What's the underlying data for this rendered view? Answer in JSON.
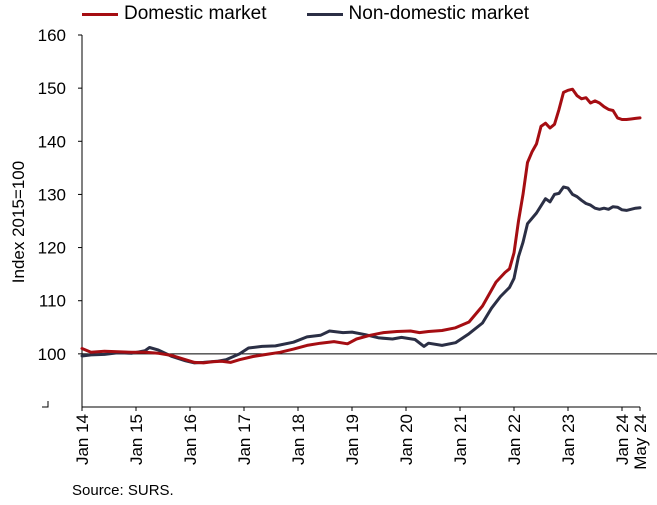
{
  "chart_data": {
    "type": "line",
    "title": "",
    "ylabel": "Index 2015=100",
    "xlabel": "",
    "ylim": [
      90,
      160
    ],
    "y_ticks": [
      100,
      110,
      120,
      130,
      140,
      150,
      160
    ],
    "x_tick_labels": [
      "Jan 14",
      "Jan 15",
      "Jan 16",
      "Jan 17",
      "Jan 18",
      "Jan 19",
      "Jan 20",
      "Jan 21",
      "Jan 22",
      "Jan 23",
      "Jan 24",
      "May 24"
    ],
    "x_tick_dates": [
      "2014-01",
      "2015-01",
      "2016-01",
      "2017-01",
      "2018-01",
      "2019-01",
      "2020-01",
      "2021-01",
      "2022-01",
      "2023-01",
      "2024-01",
      "2024-05"
    ],
    "x_range": [
      "2014-01",
      "2024-05"
    ],
    "reference_line": 100,
    "grid": false,
    "legend_position": "top",
    "series": [
      {
        "name": "Domestic market",
        "color": "#a50d12",
        "points": [
          [
            "2014-01",
            101
          ],
          [
            "2014-03",
            100.3
          ],
          [
            "2014-06",
            100.5
          ],
          [
            "2014-09",
            100.4
          ],
          [
            "2014-12",
            100.3
          ],
          [
            "2015-03",
            100.3
          ],
          [
            "2015-06",
            100.1
          ],
          [
            "2015-09",
            99.7
          ],
          [
            "2015-12",
            98.9
          ],
          [
            "2016-02",
            98.4
          ],
          [
            "2016-04",
            98.3
          ],
          [
            "2016-06",
            98.5
          ],
          [
            "2016-08",
            98.6
          ],
          [
            "2016-10",
            98.4
          ],
          [
            "2016-12",
            98.9
          ],
          [
            "2017-03",
            99.5
          ],
          [
            "2017-06",
            99.9
          ],
          [
            "2017-09",
            100.3
          ],
          [
            "2017-12",
            100.9
          ],
          [
            "2018-03",
            101.6
          ],
          [
            "2018-06",
            102
          ],
          [
            "2018-09",
            102.3
          ],
          [
            "2018-12",
            101.9
          ],
          [
            "2019-02",
            102.8
          ],
          [
            "2019-05",
            103.5
          ],
          [
            "2019-08",
            104
          ],
          [
            "2019-11",
            104.2
          ],
          [
            "2020-02",
            104.3
          ],
          [
            "2020-04",
            104
          ],
          [
            "2020-06",
            104.2
          ],
          [
            "2020-09",
            104.4
          ],
          [
            "2020-12",
            104.9
          ],
          [
            "2021-03",
            106
          ],
          [
            "2021-06",
            109
          ],
          [
            "2021-09",
            113.5
          ],
          [
            "2021-11",
            115.3
          ],
          [
            "2021-12",
            116
          ],
          [
            "2022-01",
            119
          ],
          [
            "2022-02",
            125
          ],
          [
            "2022-03",
            130
          ],
          [
            "2022-04",
            136
          ],
          [
            "2022-05",
            138
          ],
          [
            "2022-06",
            139.5
          ],
          [
            "2022-07",
            142.8
          ],
          [
            "2022-08",
            143.4
          ],
          [
            "2022-09",
            142.5
          ],
          [
            "2022-10",
            143.2
          ],
          [
            "2022-11",
            146
          ],
          [
            "2022-12",
            149.2
          ],
          [
            "2023-01",
            149.6
          ],
          [
            "2023-02",
            149.8
          ],
          [
            "2023-03",
            148.6
          ],
          [
            "2023-04",
            148
          ],
          [
            "2023-05",
            148.2
          ],
          [
            "2023-06",
            147.2
          ],
          [
            "2023-07",
            147.6
          ],
          [
            "2023-08",
            147.2
          ],
          [
            "2023-09",
            146.5
          ],
          [
            "2023-10",
            146
          ],
          [
            "2023-11",
            145.8
          ],
          [
            "2023-12",
            144.4
          ],
          [
            "2024-01",
            144.1
          ],
          [
            "2024-02",
            144.1
          ],
          [
            "2024-03",
            144.2
          ],
          [
            "2024-04",
            144.3
          ],
          [
            "2024-05",
            144.4
          ]
        ]
      },
      {
        "name": "Non-domestic market",
        "color": "#2b2f45",
        "points": [
          [
            "2014-01",
            99.6
          ],
          [
            "2014-03",
            99.8
          ],
          [
            "2014-06",
            99.9
          ],
          [
            "2014-09",
            100.2
          ],
          [
            "2014-12",
            100.1
          ],
          [
            "2015-03",
            100.6
          ],
          [
            "2015-04",
            101.2
          ],
          [
            "2015-06",
            100.7
          ],
          [
            "2015-09",
            99.5
          ],
          [
            "2015-12",
            98.7
          ],
          [
            "2016-02",
            98.3
          ],
          [
            "2016-04",
            98.4
          ],
          [
            "2016-07",
            98.6
          ],
          [
            "2016-09",
            98.9
          ],
          [
            "2016-12",
            100
          ],
          [
            "2017-02",
            101.1
          ],
          [
            "2017-05",
            101.4
          ],
          [
            "2017-08",
            101.5
          ],
          [
            "2017-12",
            102.2
          ],
          [
            "2018-03",
            103.2
          ],
          [
            "2018-06",
            103.5
          ],
          [
            "2018-08",
            104.3
          ],
          [
            "2018-11",
            104
          ],
          [
            "2019-01",
            104.1
          ],
          [
            "2019-04",
            103.6
          ],
          [
            "2019-07",
            103
          ],
          [
            "2019-10",
            102.8
          ],
          [
            "2019-12",
            103.1
          ],
          [
            "2020-03",
            102.7
          ],
          [
            "2020-05",
            101.4
          ],
          [
            "2020-06",
            102
          ],
          [
            "2020-09",
            101.6
          ],
          [
            "2020-12",
            102.1
          ],
          [
            "2021-03",
            103.8
          ],
          [
            "2021-06",
            105.8
          ],
          [
            "2021-08",
            108.6
          ],
          [
            "2021-10",
            110.8
          ],
          [
            "2021-12",
            112.5
          ],
          [
            "2022-01",
            114.2
          ],
          [
            "2022-02",
            118.3
          ],
          [
            "2022-03",
            121
          ],
          [
            "2022-04",
            124.5
          ],
          [
            "2022-06",
            126.5
          ],
          [
            "2022-08",
            129.2
          ],
          [
            "2022-09",
            128.6
          ],
          [
            "2022-10",
            130
          ],
          [
            "2022-11",
            130.2
          ],
          [
            "2022-12",
            131.4
          ],
          [
            "2023-01",
            131.2
          ],
          [
            "2023-02",
            130
          ],
          [
            "2023-03",
            129.6
          ],
          [
            "2023-04",
            128.9
          ],
          [
            "2023-05",
            128.3
          ],
          [
            "2023-06",
            128
          ],
          [
            "2023-07",
            127.4
          ],
          [
            "2023-08",
            127.2
          ],
          [
            "2023-09",
            127.4
          ],
          [
            "2023-10",
            127.2
          ],
          [
            "2023-11",
            127.7
          ],
          [
            "2023-12",
            127.6
          ],
          [
            "2024-01",
            127.1
          ],
          [
            "2024-02",
            127
          ],
          [
            "2024-03",
            127.2
          ],
          [
            "2024-04",
            127.4
          ],
          [
            "2024-05",
            127.5
          ]
        ]
      }
    ],
    "source": "Source: SURS."
  }
}
